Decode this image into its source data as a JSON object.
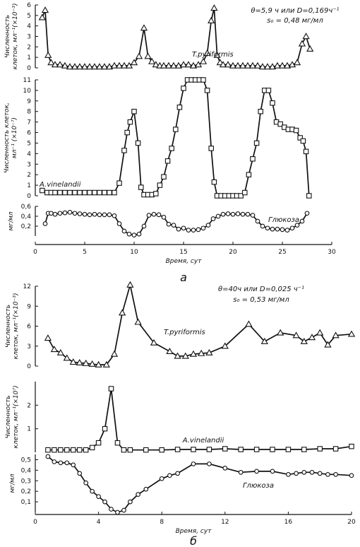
{
  "chart_data": [
    {
      "type": "line",
      "panel_label": "а",
      "xlabel": "Время, сут",
      "xlim": [
        0,
        30
      ],
      "x_ticks": [
        "0",
        "5",
        "10",
        "15",
        "20",
        "25",
        "30"
      ],
      "annotation": [
        "θ=5,9 ч или D=0,169ч⁻¹",
        "s₀ = 0,48 мг/мл"
      ],
      "subplots": [
        {
          "ylabel": [
            "Численность",
            "клеток, мл⁻¹(×10⁻³)"
          ],
          "ylim": [
            0,
            6
          ],
          "y_ticks": [
            "0",
            "1",
            "2",
            "3",
            "4",
            "5",
            "6"
          ],
          "series": [
            {
              "name": "T.pyriformis",
              "marker": "triangle",
              "x": [
                0.7,
                1.0,
                1.3,
                1.6,
                2.0,
                2.5,
                3.0,
                3.5,
                4.0,
                4.5,
                5.0,
                5.5,
                6.0,
                6.5,
                7.0,
                7.5,
                8.0,
                8.5,
                9.0,
                9.5,
                10.0,
                10.5,
                11.0,
                11.4,
                11.8,
                12.2,
                12.6,
                13.0,
                13.5,
                14.0,
                14.5,
                15.0,
                15.5,
                16.0,
                16.5,
                17.0,
                17.4,
                17.8,
                18.1,
                18.4,
                18.7,
                19.0,
                19.5,
                20.0,
                20.5,
                21.0,
                21.5,
                22.0,
                22.5,
                23.0,
                23.5,
                24.0,
                24.5,
                25.0,
                25.5,
                26.0,
                26.5,
                27.0,
                27.4,
                27.8
              ],
              "y": [
                4.8,
                5.5,
                1.2,
                0.5,
                0.3,
                0.3,
                0.2,
                0.1,
                0.1,
                0.1,
                0.1,
                0.1,
                0.1,
                0.1,
                0.1,
                0.1,
                0.2,
                0.2,
                0.2,
                0.2,
                0.5,
                1.1,
                3.8,
                1.1,
                0.6,
                0.3,
                0.2,
                0.2,
                0.2,
                0.2,
                0.2,
                0.3,
                0.3,
                0.2,
                0.3,
                0.6,
                1.4,
                4.5,
                5.7,
                1.2,
                0.5,
                0.3,
                0.3,
                0.2,
                0.2,
                0.2,
                0.2,
                0.2,
                0.2,
                0.1,
                0.1,
                0.1,
                0.2,
                0.2,
                0.2,
                0.3,
                0.5,
                2.3,
                3.0,
                1.8
              ]
            }
          ]
        },
        {
          "ylabel": [
            "Численность клеток,",
            "мл⁻¹ (×10⁻⁷)"
          ],
          "ylim": [
            0,
            11
          ],
          "y_ticks": [
            "0",
            "1",
            "2",
            "3",
            "4",
            "5",
            "6",
            "7",
            "8",
            "9",
            "10",
            "11"
          ],
          "series": [
            {
              "name": "A.vinelandii",
              "marker": "square",
              "x": [
                0.7,
                1.2,
                1.6,
                2.0,
                2.5,
                3.0,
                3.5,
                4.0,
                4.5,
                5.0,
                5.5,
                6.0,
                6.5,
                7.0,
                7.5,
                8.0,
                8.5,
                9.0,
                9.3,
                9.6,
                10.0,
                10.4,
                10.7,
                11.0,
                11.4,
                11.8,
                12.2,
                12.6,
                13.0,
                13.4,
                13.8,
                14.2,
                14.6,
                15.0,
                15.4,
                15.8,
                16.2,
                16.6,
                17.0,
                17.4,
                17.8,
                18.1,
                18.4,
                18.8,
                19.2,
                19.6,
                20.0,
                20.4,
                20.8,
                21.2,
                21.6,
                22.0,
                22.4,
                22.8,
                23.2,
                23.6,
                24.0,
                24.4,
                24.8,
                25.2,
                25.6,
                26.0,
                26.4,
                26.8,
                27.1,
                27.4,
                27.7
              ],
              "y": [
                0.5,
                0.3,
                0.3,
                0.3,
                0.3,
                0.3,
                0.3,
                0.3,
                0.3,
                0.3,
                0.3,
                0.3,
                0.3,
                0.3,
                0.3,
                0.3,
                1.2,
                4.3,
                6.0,
                7.0,
                8.0,
                5.0,
                0.8,
                0.1,
                0.1,
                0.1,
                0.2,
                1.0,
                1.8,
                3.3,
                4.5,
                6.3,
                8.4,
                10.2,
                11.0,
                11.0,
                11.0,
                11.0,
                11.0,
                10.0,
                4.5,
                1.3,
                0.0,
                0.0,
                0.0,
                0.0,
                0.0,
                0.0,
                0.0,
                0.3,
                2.0,
                3.5,
                5.0,
                8.0,
                10.0,
                10.0,
                8.8,
                7.0,
                6.8,
                6.5,
                6.3,
                6.3,
                6.2,
                5.5,
                5.2,
                4.2,
                0.0
              ]
            }
          ]
        },
        {
          "ylabel": [
            "мг/мл"
          ],
          "ylim": [
            0,
            0.6
          ],
          "y_ticks": [
            "0,2",
            "0,4",
            "0,6"
          ],
          "series": [
            {
              "name": "Глюкоза",
              "marker": "circle",
              "x": [
                1.0,
                1.3,
                1.6,
                2.0,
                2.5,
                3.0,
                3.5,
                4.0,
                4.5,
                5.0,
                5.5,
                6.0,
                6.5,
                7.0,
                7.5,
                8.0,
                8.5,
                9.0,
                9.5,
                10.0,
                10.5,
                11.0,
                11.5,
                12.0,
                12.5,
                13.0,
                13.5,
                14.0,
                14.5,
                15.0,
                15.5,
                16.0,
                16.5,
                17.0,
                17.5,
                18.0,
                18.5,
                19.0,
                19.5,
                20.0,
                20.5,
                21.0,
                21.5,
                22.0,
                22.5,
                23.0,
                23.5,
                24.0,
                24.5,
                25.0,
                25.5,
                26.0,
                26.5,
                27.0,
                27.5
              ],
              "y": [
                0.25,
                0.46,
                0.46,
                0.44,
                0.46,
                0.47,
                0.48,
                0.46,
                0.45,
                0.44,
                0.43,
                0.44,
                0.43,
                0.43,
                0.43,
                0.41,
                0.25,
                0.1,
                0.04,
                0.02,
                0.04,
                0.2,
                0.42,
                0.44,
                0.43,
                0.38,
                0.24,
                0.22,
                0.14,
                0.16,
                0.12,
                0.12,
                0.13,
                0.16,
                0.22,
                0.35,
                0.4,
                0.44,
                0.45,
                0.44,
                0.45,
                0.44,
                0.44,
                0.42,
                0.3,
                0.2,
                0.16,
                0.14,
                0.14,
                0.13,
                0.12,
                0.16,
                0.22,
                0.3,
                0.46
              ]
            }
          ]
        }
      ]
    },
    {
      "type": "line",
      "panel_label": "б",
      "xlabel": "Время, сут",
      "xlim": [
        0,
        20
      ],
      "x_ticks": [
        "0",
        "4",
        "8",
        "12",
        "16",
        "20"
      ],
      "annotation": [
        "θ=40ч или D=0,025 ч⁻¹",
        "s₀ = 0,53 мг/мл"
      ],
      "subplots": [
        {
          "ylabel": [
            "Численность",
            "клеток, мл⁻¹(×10⁻³)"
          ],
          "ylim": [
            0,
            12
          ],
          "y_ticks": [
            "0",
            "3",
            "6",
            "9",
            "12"
          ],
          "series": [
            {
              "name": "T.pyriformis",
              "marker": "triangle",
              "x": [
                0.8,
                1.2,
                1.6,
                2.0,
                2.4,
                2.8,
                3.2,
                3.6,
                4.0,
                4.5,
                5.0,
                5.5,
                6.0,
                6.5,
                7.5,
                8.5,
                9.0,
                9.5,
                10.0,
                10.5,
                11.0,
                12.0,
                13.5,
                14.5,
                15.5,
                16.5,
                17.0,
                17.5,
                18.0,
                18.5,
                19.0,
                20.0
              ],
              "y": [
                4.2,
                2.5,
                2.0,
                1.2,
                0.6,
                0.5,
                0.4,
                0.3,
                0.2,
                0.2,
                1.8,
                8.0,
                12.2,
                6.6,
                3.5,
                2.2,
                1.5,
                1.5,
                1.8,
                1.9,
                2.0,
                3.0,
                6.3,
                3.7,
                5.0,
                4.6,
                3.7,
                4.3,
                5.0,
                3.2,
                4.6,
                4.8
              ]
            }
          ]
        },
        {
          "ylabel": [
            "Численность",
            "клеток, мл⁻¹(×10⁷)"
          ],
          "ylim": [
            0,
            3
          ],
          "y_ticks": [
            "1",
            "2"
          ],
          "series": [
            {
              "name": "A.vinelandii",
              "marker": "square",
              "x": [
                0.8,
                1.2,
                1.6,
                2.0,
                2.4,
                2.8,
                3.2,
                3.6,
                4.0,
                4.4,
                4.8,
                5.2,
                5.6,
                6.0,
                7.0,
                8.0,
                9.0,
                10.0,
                11.0,
                12.0,
                13.0,
                14.0,
                15.0,
                16.0,
                17.0,
                18.0,
                19.0,
                20.0
              ],
              "y": [
                0.1,
                0.1,
                0.1,
                0.1,
                0.1,
                0.1,
                0.1,
                0.2,
                0.4,
                1.0,
                2.7,
                0.4,
                0.1,
                0.1,
                0.1,
                0.1,
                0.12,
                0.12,
                0.12,
                0.15,
                0.12,
                0.12,
                0.12,
                0.12,
                0.12,
                0.15,
                0.15,
                0.25
              ]
            }
          ]
        },
        {
          "ylabel": [
            "мг/мл"
          ],
          "ylim": [
            0,
            0.55
          ],
          "y_ticks": [
            "0,1",
            "0,2",
            "0,3",
            "0,4",
            "0,5"
          ],
          "series": [
            {
              "name": "Глюкоза",
              "marker": "circle",
              "x": [
                0.8,
                1.2,
                1.6,
                2.0,
                2.4,
                2.8,
                3.2,
                3.6,
                4.0,
                4.4,
                4.8,
                5.2,
                5.6,
                6.0,
                6.5,
                7.0,
                8.0,
                8.5,
                9.0,
                10.0,
                11.0,
                12.0,
                13.0,
                14.0,
                15.0,
                16.0,
                16.5,
                17.0,
                17.5,
                18.0,
                18.5,
                19.0,
                20.0
              ],
              "y": [
                0.53,
                0.48,
                0.47,
                0.47,
                0.45,
                0.37,
                0.28,
                0.2,
                0.15,
                0.1,
                0.03,
                0.0,
                0.02,
                0.1,
                0.17,
                0.22,
                0.32,
                0.35,
                0.37,
                0.46,
                0.46,
                0.42,
                0.38,
                0.39,
                0.39,
                0.36,
                0.37,
                0.38,
                0.38,
                0.37,
                0.36,
                0.36,
                0.35
              ]
            }
          ]
        }
      ]
    }
  ]
}
